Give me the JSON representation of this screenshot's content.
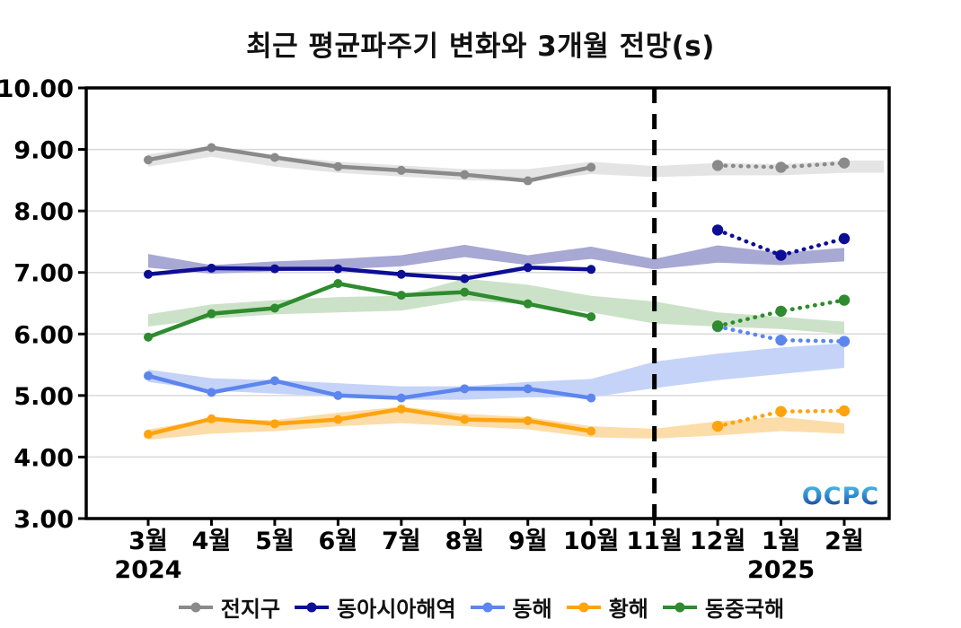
{
  "title": "최근 평균파주기 변화와 3개월 전망(s)",
  "logo_text": "OCPC",
  "colors": {
    "frame": "#000000",
    "grid": "#d9d9d9",
    "divider": "#000000",
    "logo_top": "#4ec7ea",
    "logo_bottom": "#122a78"
  },
  "chart_data": {
    "type": "line",
    "title": "최근 평균파주기 변화와 3개월 전망(s)",
    "unit": "s",
    "ylim": [
      3,
      10
    ],
    "y_ticks": [
      3,
      4,
      5,
      6,
      7,
      8,
      9,
      10
    ],
    "y_tick_labels": [
      "3.00",
      "4.00",
      "5.00",
      "6.00",
      "7.00",
      "8.00",
      "9.00",
      "10.00"
    ],
    "x_tick_labels": [
      "3월",
      "4월",
      "5월",
      "6월",
      "7월",
      "8월",
      "9월",
      "10월",
      "11월",
      "12월",
      "1월",
      "2월"
    ],
    "year_labels": [
      {
        "text": "2024",
        "month_index": 0
      },
      {
        "text": "2025",
        "month_index": 10
      }
    ],
    "grid": "horizontal",
    "legend_position": "bottom",
    "divider_month_index": 8,
    "observed_month_indices": [
      0,
      1,
      2,
      3,
      4,
      5,
      6,
      7
    ],
    "forecast_month_indices": [
      9,
      10,
      11
    ],
    "series": [
      {
        "id": "global",
        "name": "전지구",
        "color": "#8a8a8a",
        "band_color": "#e4e4e4",
        "band_right_edge": true,
        "observed": [
          8.83,
          9.03,
          8.87,
          8.72,
          8.66,
          8.59,
          8.49,
          8.71
        ],
        "forecast": [
          8.74,
          8.71,
          8.78
        ],
        "band_lower": [
          8.72,
          8.88,
          8.72,
          8.62,
          8.56,
          8.5,
          8.48,
          8.6,
          8.55,
          8.58,
          8.58,
          8.62
        ],
        "band_upper": [
          8.92,
          9.06,
          8.9,
          8.8,
          8.74,
          8.68,
          8.68,
          8.8,
          8.73,
          8.78,
          8.76,
          8.82
        ]
      },
      {
        "id": "east-asia-seas",
        "name": "동아시아해역",
        "color": "#0d0d96",
        "band_color": "#a8a8d4",
        "band_right_edge": false,
        "observed": [
          6.97,
          7.07,
          7.06,
          7.06,
          6.97,
          6.9,
          7.08,
          7.05
        ],
        "forecast": [
          7.69,
          7.28,
          7.55
        ],
        "band_lower": [
          7.08,
          6.98,
          7.02,
          7.05,
          7.1,
          7.25,
          7.12,
          7.22,
          7.05,
          7.16,
          7.12,
          7.18
        ],
        "band_upper": [
          7.3,
          7.12,
          7.18,
          7.22,
          7.28,
          7.45,
          7.28,
          7.42,
          7.22,
          7.44,
          7.32,
          7.4
        ]
      },
      {
        "id": "east-sea",
        "name": "동해",
        "color": "#5c86ee",
        "band_color": "#c5d3f8",
        "band_right_edge": false,
        "observed": [
          5.32,
          5.05,
          5.24,
          5.0,
          4.96,
          5.11,
          5.11,
          4.96
        ],
        "forecast": [
          6.12,
          5.9,
          5.88
        ],
        "band_lower": [
          5.22,
          5.08,
          5.03,
          4.98,
          4.93,
          4.93,
          4.97,
          4.97,
          5.12,
          5.25,
          5.35,
          5.45
        ],
        "band_upper": [
          5.42,
          5.28,
          5.25,
          5.2,
          5.15,
          5.15,
          5.22,
          5.27,
          5.55,
          5.68,
          5.78,
          5.85
        ]
      },
      {
        "id": "yellow-sea",
        "name": "황해",
        "color": "#ffa30f",
        "band_color": "#fcdda9",
        "band_right_edge": false,
        "observed": [
          4.37,
          4.62,
          4.54,
          4.61,
          4.78,
          4.61,
          4.59,
          4.42
        ],
        "forecast": [
          4.5,
          4.74,
          4.75
        ],
        "band_lower": [
          4.28,
          4.38,
          4.42,
          4.5,
          4.55,
          4.5,
          4.45,
          4.32,
          4.3,
          4.35,
          4.42,
          4.38
        ],
        "band_upper": [
          4.45,
          4.62,
          4.6,
          4.72,
          4.82,
          4.7,
          4.65,
          4.5,
          4.46,
          4.58,
          4.65,
          4.55
        ]
      },
      {
        "id": "east-china-sea",
        "name": "동중국해",
        "color": "#2e8b2e",
        "band_color": "#cbe2c8",
        "band_right_edge": false,
        "observed": [
          5.95,
          6.33,
          6.42,
          6.82,
          6.63,
          6.68,
          6.49,
          6.28
        ],
        "forecast": [
          6.13,
          6.37,
          6.55
        ],
        "band_lower": [
          6.12,
          6.25,
          6.32,
          6.35,
          6.38,
          6.55,
          6.48,
          6.35,
          6.17,
          6.12,
          6.08,
          6.0
        ],
        "band_upper": [
          6.32,
          6.48,
          6.55,
          6.6,
          6.62,
          6.9,
          6.8,
          6.62,
          6.53,
          6.35,
          6.28,
          6.2
        ]
      }
    ]
  }
}
